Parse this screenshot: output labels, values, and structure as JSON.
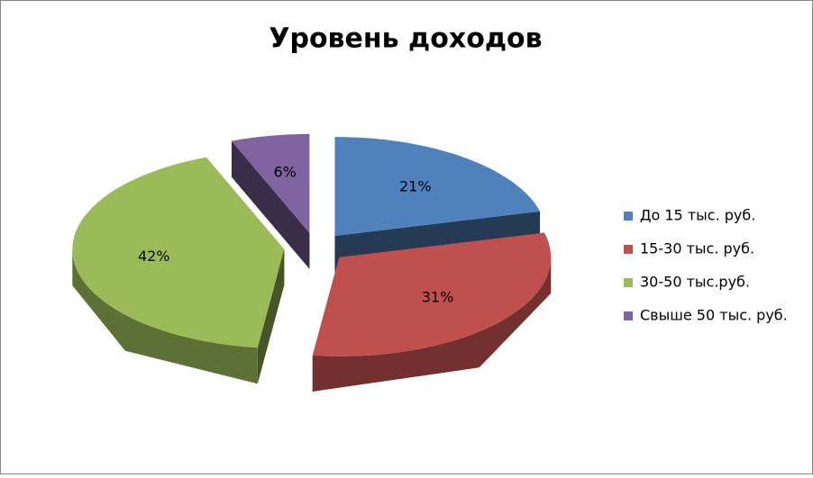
{
  "chart_data": {
    "type": "pie3d",
    "title": "Уровень доходов",
    "categories": [
      "До 15 тыс. руб.",
      "15-30 тыс. руб.",
      "30-50 тыс.руб.",
      "Свыше 50 тыс. руб."
    ],
    "values": [
      21,
      31,
      42,
      6
    ],
    "value_labels": [
      "21%",
      "31%",
      "42%",
      "6%"
    ],
    "colors": [
      "#4f81bd",
      "#c0504d",
      "#9bbb59",
      "#8064a2"
    ],
    "legend": "right"
  }
}
